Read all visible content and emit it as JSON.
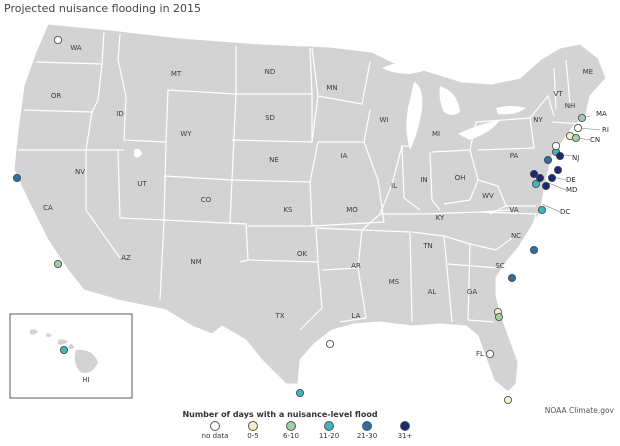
{
  "title": "Projected nuisance flooding in 2015",
  "credit": "NOAA Climate.gov",
  "colors": {
    "no_data": "#ffffff",
    "0_5": "#f4f1c5",
    "6_10": "#9fd0a9",
    "11_20": "#3fb5bd",
    "21_30": "#2d6fa6",
    "31_plus": "#1a2a6e",
    "land": "#d3d3d3",
    "border": "#ffffff",
    "water": "#ffffff"
  },
  "legend": {
    "title": "Number of days with a nuisance-level flood",
    "items": [
      {
        "label": "no data",
        "color": "#ffffff"
      },
      {
        "label": "0-5",
        "color": "#f4f1c5"
      },
      {
        "label": "6-10",
        "color": "#9fd0a9"
      },
      {
        "label": "11-20",
        "color": "#3fb5bd"
      },
      {
        "label": "21-30",
        "color": "#2d6fa6"
      },
      {
        "label": "31+",
        "color": "#1a2a6e"
      }
    ]
  },
  "states": [
    "WA",
    "OR",
    "ID",
    "MT",
    "WY",
    "ND",
    "SD",
    "NE",
    "MN",
    "IA",
    "WI",
    "MI",
    "NV",
    "CA",
    "UT",
    "CO",
    "KS",
    "MO",
    "IL",
    "IN",
    "OH",
    "PA",
    "NY",
    "VT",
    "NH",
    "ME",
    "AZ",
    "NM",
    "OK",
    "TX",
    "AR",
    "LA",
    "MS",
    "AL",
    "TN",
    "KY",
    "WV",
    "VA",
    "NC",
    "SC",
    "GA",
    "FL",
    "HI"
  ],
  "callouts": [
    "MA",
    "RI",
    "CN",
    "NJ",
    "DE",
    "MD",
    "DC"
  ]
}
